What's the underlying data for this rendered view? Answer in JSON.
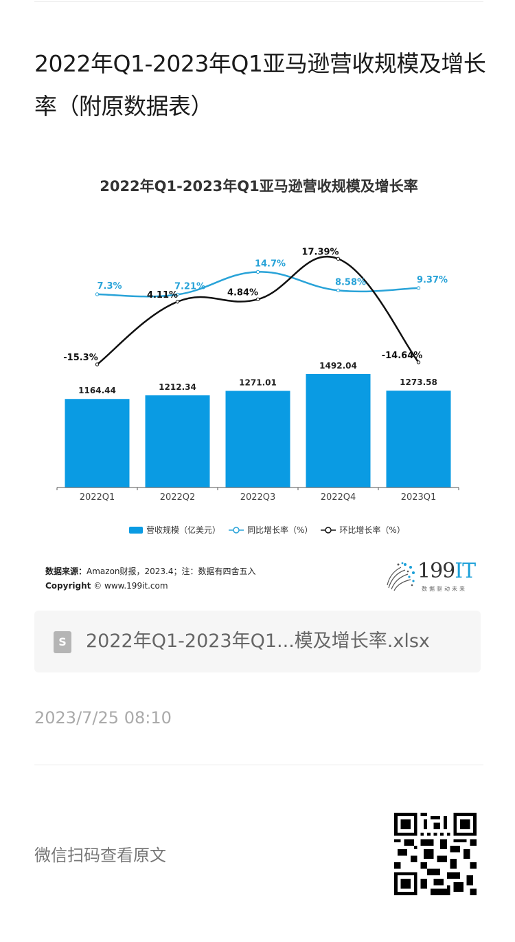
{
  "page": {
    "title": "2022年Q1-2023年Q1亚马逊营收规模及增长率（附原数据表）"
  },
  "chart": {
    "title": "2022年Q1-2023年Q1亚马逊营收规模及增长率",
    "legend": {
      "revenue": "营收规模（亿美元）",
      "yoy": "同比增长率（%）",
      "qoq": "环比增长率（%）"
    },
    "source_label": "数据来源：",
    "source_text": "Amazon财报，2023.4；注：数据有四舍五入",
    "copyright_label": "Copyright",
    "copyright_text": "© www.199it.com",
    "logo_number": "199",
    "logo_suffix": "IT",
    "logo_tagline": "数据驱动未来",
    "colors": {
      "bar": "#0a9be3",
      "yoy": "#29a3d8",
      "qoq": "#111111"
    }
  },
  "chart_data": {
    "type": "bar",
    "title": "2022年Q1-2023年Q1亚马逊营收规模及增长率",
    "categories": [
      "2022Q1",
      "2022Q2",
      "2022Q3",
      "2022Q4",
      "2023Q1"
    ],
    "series": [
      {
        "name": "营收规模（亿美元）",
        "type": "bar",
        "values": [
          1164.44,
          1212.34,
          1271.01,
          1492.04,
          1273.58
        ]
      },
      {
        "name": "同比增长率（%）",
        "type": "line",
        "values": [
          7.3,
          7.21,
          14.7,
          8.58,
          9.37
        ]
      },
      {
        "name": "环比增长率（%）",
        "type": "line",
        "values": [
          -15.3,
          4.11,
          4.84,
          17.39,
          -14.64
        ]
      }
    ],
    "labels": {
      "bars": [
        "1164.44",
        "1212.34",
        "1271.01",
        "1492.04",
        "1273.58"
      ],
      "yoy": [
        "7.3%",
        "7.21%",
        "14.7%",
        "8.58%",
        "9.37%"
      ],
      "qoq": [
        "-15.3%",
        "4.11%",
        "4.84%",
        "17.39%",
        "-14.64%"
      ]
    },
    "xlabel": "",
    "ylabel": "",
    "grid": false,
    "legend_position": "bottom"
  },
  "attachment": {
    "icon": "S",
    "file_name": "2022年Q1-2023年Q1...模及增长率.xlsx"
  },
  "meta": {
    "timestamp": "2023/7/25 08:10",
    "scan_label": "微信扫码查看原文"
  }
}
